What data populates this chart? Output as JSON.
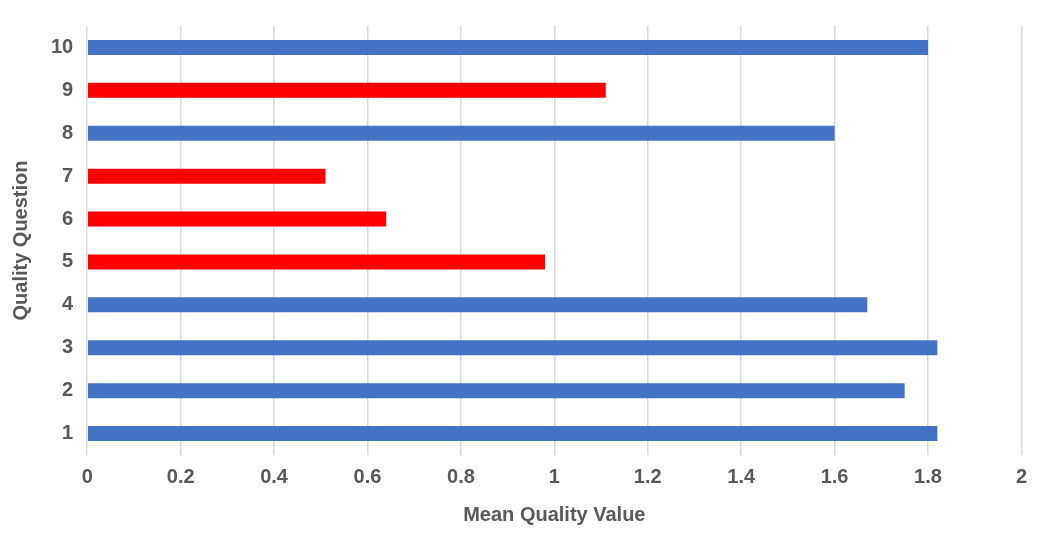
{
  "chart_data": {
    "type": "bar",
    "orientation": "horizontal",
    "xlabel": "Mean Quality Value",
    "ylabel": "Quality Question",
    "categories": [
      "10",
      "9",
      "8",
      "7",
      "6",
      "5",
      "4",
      "3",
      "2",
      "1"
    ],
    "values": [
      1.8,
      1.11,
      1.6,
      0.51,
      0.64,
      0.98,
      1.67,
      1.82,
      1.75,
      1.82
    ],
    "colors": [
      "#4472c4",
      "#ff0000",
      "#4472c4",
      "#ff0000",
      "#ff0000",
      "#ff0000",
      "#4472c4",
      "#4472c4",
      "#4472c4",
      "#4472c4"
    ],
    "xlim": [
      0,
      2
    ],
    "xticks": [
      0,
      0.2,
      0.4,
      0.6,
      0.8,
      1,
      1.2,
      1.4,
      1.6,
      1.8,
      2
    ],
    "grid": "x",
    "legend": false
  }
}
